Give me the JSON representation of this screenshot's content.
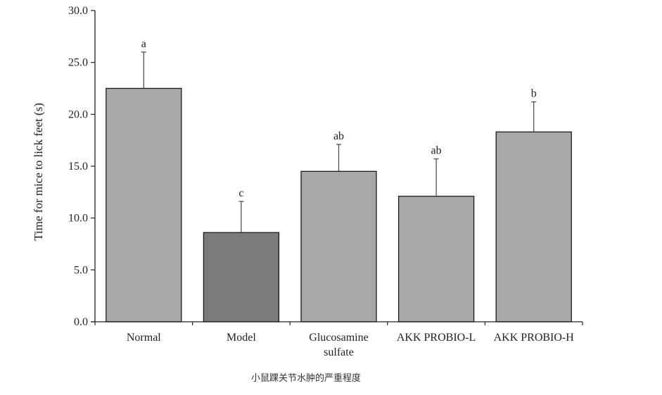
{
  "caption": "小鼠踝关节水肿的严重程度",
  "chart_data": {
    "type": "bar",
    "title": "",
    "xlabel": "",
    "ylabel": "Time for mice to lick feet (s)",
    "ylim": [
      0,
      30
    ],
    "yticks": [
      0,
      5,
      10,
      15,
      20,
      25,
      30
    ],
    "ytick_labels": [
      "0.0",
      "5.0",
      "10.0",
      "15.0",
      "20.0",
      "25.0",
      "30.0"
    ],
    "grid": false,
    "categories": [
      [
        "Normal"
      ],
      [
        "Model"
      ],
      [
        "Glucosamine",
        "sulfate"
      ],
      [
        "AKK PROBIO-L"
      ],
      [
        "AKK PROBIO-H"
      ]
    ],
    "values": [
      22.5,
      8.6,
      14.5,
      12.1,
      18.3
    ],
    "errors": [
      3.5,
      3.0,
      2.6,
      3.6,
      2.9
    ],
    "significance": [
      "a",
      "c",
      "ab",
      "ab",
      "b"
    ],
    "colors": [
      "#a8a8a8",
      "#7b7b7b",
      "#a8a8a8",
      "#a8a8a8",
      "#a8a8a8"
    ]
  }
}
